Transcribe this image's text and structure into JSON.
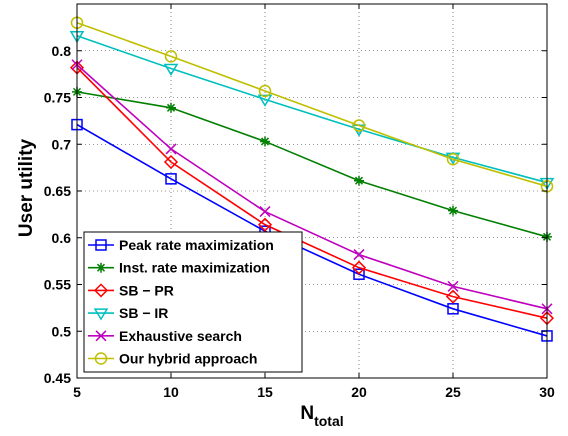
{
  "chart_data": {
    "type": "line",
    "xlabel_main": "N",
    "xlabel_sub": "total",
    "ylabel": "User utility",
    "xlim": [
      5,
      30
    ],
    "ylim": [
      0.45,
      0.85
    ],
    "x": [
      5,
      10,
      15,
      20,
      25,
      30
    ],
    "xticks": [
      "5",
      "10",
      "15",
      "20",
      "25",
      "30"
    ],
    "yticks": [
      0.45,
      0.5,
      0.55,
      0.6,
      0.65,
      0.7,
      0.75,
      0.8
    ],
    "ytick_labels": [
      "0.45",
      "0.5",
      "0.55",
      "0.6",
      "0.65",
      "0.7",
      "0.75",
      "0.8"
    ],
    "grid": true,
    "legend_position": "bottom-left",
    "series": [
      {
        "name": "Peak rate maximization",
        "color": "#0000ff",
        "marker": "square",
        "values": [
          0.721,
          0.663,
          0.607,
          0.561,
          0.524,
          0.495
        ]
      },
      {
        "name": "Inst. rate maximization",
        "color": "#007f00",
        "marker": "asterisk",
        "values": [
          0.756,
          0.739,
          0.703,
          0.661,
          0.629,
          0.601
        ]
      },
      {
        "name": "SB − PR",
        "color": "#ff0000",
        "marker": "diamond",
        "values": [
          0.782,
          0.681,
          0.614,
          0.568,
          0.537,
          0.514
        ]
      },
      {
        "name": "SB − IR",
        "color": "#00bfbf",
        "marker": "triangle-down",
        "values": [
          0.816,
          0.781,
          0.748,
          0.716,
          0.686,
          0.659
        ]
      },
      {
        "name": "Exhaustive search",
        "color": "#bf00bf",
        "marker": "x",
        "values": [
          0.785,
          0.695,
          0.628,
          0.582,
          0.548,
          0.524
        ]
      },
      {
        "name": "Our hybrid approach",
        "color": "#bfbf00",
        "marker": "circle",
        "values": [
          0.83,
          0.794,
          0.757,
          0.72,
          0.684,
          0.655
        ]
      }
    ]
  }
}
